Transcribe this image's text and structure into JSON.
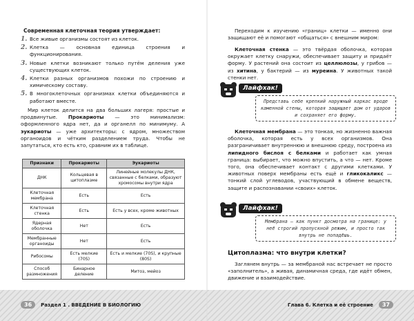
{
  "left_page": {
    "heading": "Современная клеточная теория утверждает:",
    "list": [
      {
        "marker": "1.",
        "text": "Все живые организмы состоят из клеток."
      },
      {
        "marker": "2.",
        "text": "Клетка — основная единица строения и функционирования."
      },
      {
        "marker": "3.",
        "text": "Новые клетки возникают только путём деления уже существующих клеток."
      },
      {
        "marker": "4.",
        "text": "Клетки разных организмов похожи по строению и химическому составу."
      },
      {
        "marker": "5.",
        "text": "В многоклеточных организмах клетки объединяются и работают вместе."
      }
    ],
    "paragraph": [
      "Мир клеток делится на два больших лагеря: простые и продвинутые. ",
      "Прокариоты",
      " — это минимализм: оформленного ядра нет, да и органелл по минимуму. А ",
      "эукариоты",
      " — уже архитекторы: с ядром, множеством органоидов и чётким разделением труда. Чтобы не запутаться, кто есть кто, сравним их в таблице."
    ],
    "table": {
      "header": [
        "Признаки",
        "Прокариоты",
        "Эукариоты"
      ],
      "rows": [
        [
          "ДНК",
          "Кольцевая в цитоплазме",
          "Линейные молекулы ДНК, связанные с белками, образуют хромосомы внутри ядра"
        ],
        [
          "Клеточная мембрана",
          "Есть",
          "Есть"
        ],
        [
          "Клеточная стенка",
          "Есть",
          "Есть у всех, кроме животных"
        ],
        [
          "Ядерная оболочка",
          "Нет",
          "Есть"
        ],
        [
          "Мембранные органоиды",
          "Нет",
          "Есть"
        ],
        [
          "Рибосомы",
          "Есть мелкие (70S)",
          "Есть и мелкие (70S), и крупные (80S)"
        ],
        [
          "Способ размножения",
          "Бинарное деление",
          "Митоз, мейоз"
        ]
      ]
    },
    "footer": {
      "page_number": "36",
      "section": "Раздел 1 . ВВЕДЕНИЕ В БИОЛОГИЮ"
    }
  },
  "right_page": {
    "paragraph_1": [
      "Переходим к изучению «границ» клетки — именно они защищают её и помогают «общаться» с внешним миром:"
    ],
    "paragraph_2": [
      "",
      "Клеточная стенка",
      " — это твёрдая оболочка, которая окружает клетку снаружи, обеспечивает защиту и придаёт форму. У растений она состоит из ",
      "целлюлозы",
      ", у грибов — из ",
      "хитина",
      ", у бактерий — из ",
      "муреина",
      ". У животных такой стенки нет."
    ],
    "lifehack_1": {
      "label": "Лайфхак!",
      "text": "Представь себе крепкий наружный каркас вроде каменной стены, которая защищает дом от ударов и сохраняет его форму."
    },
    "paragraph_3": [
      "",
      "Клеточная мембрана",
      " — это тонкая, но жизненно важная оболочка, которая есть у всех организмов. Она разграничивает внутреннюю и внешнюю среду, построена из ",
      "липидного бислоя с белками",
      " и работает как умная граница: выбирает, что можно впустить, а что — нет. Кроме того, она обеспечивает контакт с другими клетками. У животных поверх мембраны есть ещё и ",
      "гликокаликс",
      " — тонкий слой углеводов, участвующий в обмене веществ, защите и распознавании «своих» клеток."
    ],
    "lifehack_2": {
      "label": "Лайфхак!",
      "text": "Мембрана — как пункт досмотра на границе: у неё строгий пропускной режим, и просто так внутрь не попадёшь."
    },
    "heading": "Цитоплазма: что внутри клетки?",
    "paragraph_4": [
      "Заглянем внутрь — за мембраной нас встречает не просто «заполнитель», а живая, динамичная среда, где идёт обмен, движение и взаимодействие."
    ],
    "footer": {
      "chapter": "Глава 6. Клетка и её строение",
      "page_number": "37"
    }
  }
}
